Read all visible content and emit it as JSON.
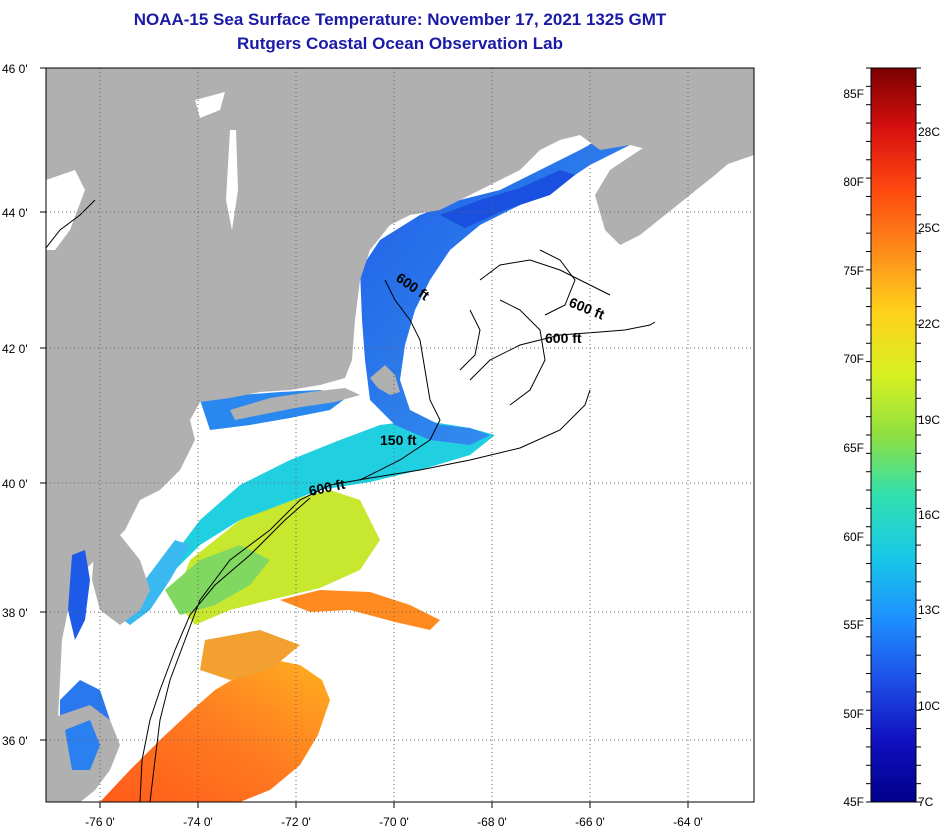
{
  "header": {
    "title_line1": "NOAA-15 Sea Surface Temperature:  November 17, 2021 1325 GMT",
    "title_line2": "Rutgers Coastal Ocean Observation Lab"
  },
  "map": {
    "lon_labels": [
      "-76 0'",
      "-74 0'",
      "-72 0'",
      "-70 0'",
      "-68 0'",
      "-66 0'",
      "-64 0'"
    ],
    "lat_labels": [
      "46 0'",
      "44 0'",
      "42 0'",
      "40 0'",
      "38 0'",
      "36 0'"
    ],
    "contour_labels": [
      "600 ft",
      "600 ft",
      "600 ft",
      "150 ft",
      "600 ft"
    ],
    "colors": {
      "land": "#b0b0b0",
      "nodata": "#ffffff",
      "grid": "#555555"
    }
  },
  "colorbar": {
    "f_labels": [
      "85F",
      "80F",
      "75F",
      "70F",
      "65F",
      "60F",
      "55F",
      "50F",
      "45F"
    ],
    "c_labels": [
      "28C",
      "25C",
      "22C",
      "19C",
      "16C",
      "13C",
      "10C",
      "7C"
    ],
    "gradient": [
      "#7a0000",
      "#d81010",
      "#ff4a10",
      "#ff8c1a",
      "#ffd21a",
      "#d8f020",
      "#8fe040",
      "#30e0b0",
      "#18c8e8",
      "#1e90ff",
      "#1e50e8",
      "#1010c0",
      "#00008a"
    ]
  }
}
